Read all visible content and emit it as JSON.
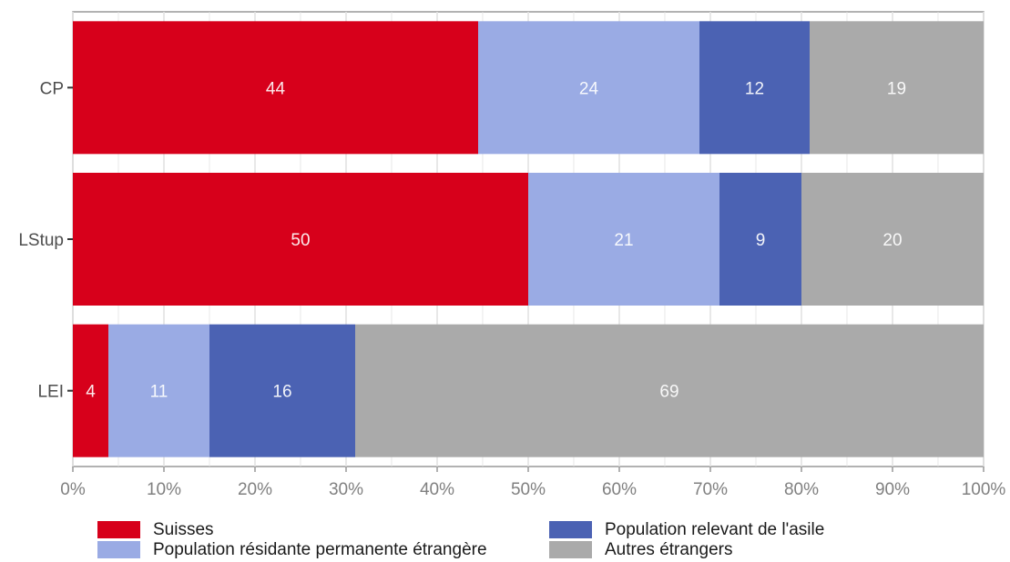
{
  "chart_data": {
    "type": "bar",
    "orientation": "horizontal",
    "stacked": true,
    "categories": [
      "CP",
      "LStup",
      "LEI"
    ],
    "series": [
      {
        "name": "Suisses",
        "color": "#d7001b",
        "values": [
          44,
          50,
          4
        ]
      },
      {
        "name": "Population résidante permanente étrangère",
        "color": "#9aabe4",
        "values": [
          24,
          21,
          11
        ]
      },
      {
        "name": "Population relevant de l'asile",
        "color": "#4b62b3",
        "values": [
          12,
          9,
          16
        ]
      },
      {
        "name": "Autres étrangers",
        "color": "#aaaaaa",
        "values": [
          19,
          20,
          69
        ]
      }
    ],
    "segment_widths": [
      [
        44.5,
        24.3,
        12.1,
        19.1
      ],
      [
        50.0,
        21.0,
        9.0,
        20.0
      ],
      [
        3.9,
        11.1,
        16.0,
        69.0
      ]
    ],
    "xlim": [
      0,
      100
    ],
    "xticks": [
      "0%",
      "10%",
      "20%",
      "30%",
      "40%",
      "50%",
      "60%",
      "70%",
      "80%",
      "90%",
      "100%"
    ],
    "xlabel": "",
    "ylabel": "",
    "title": "",
    "grid": true,
    "legend_position": "bottom"
  }
}
